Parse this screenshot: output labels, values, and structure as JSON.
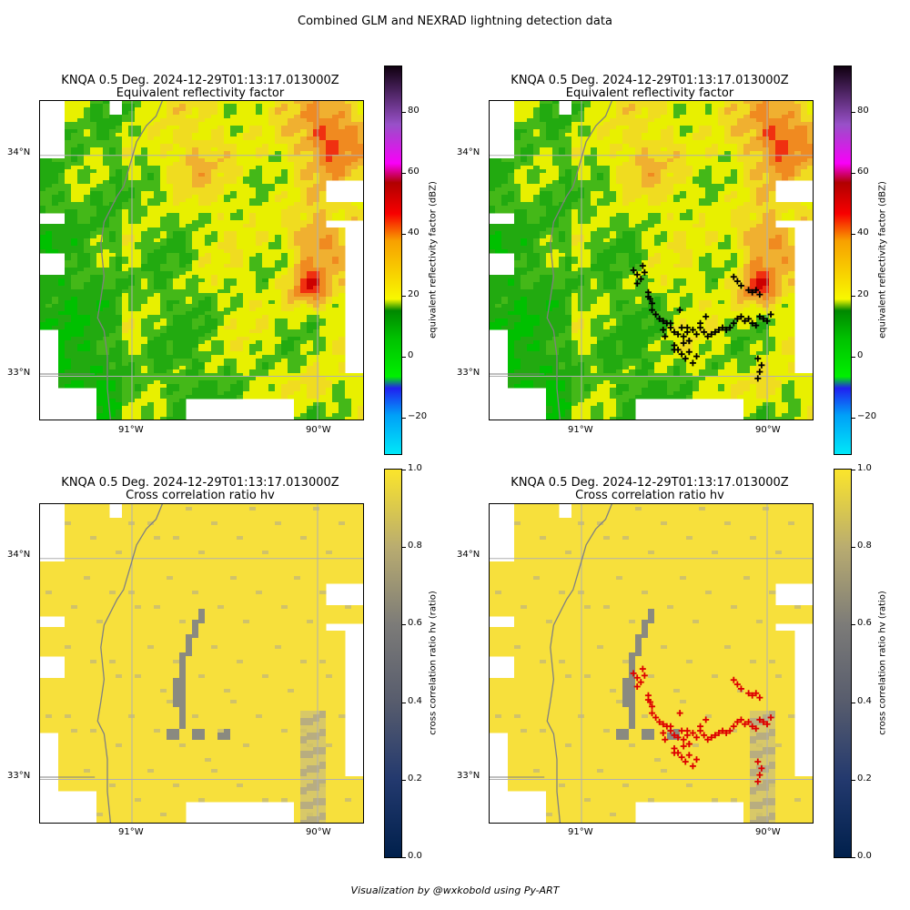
{
  "suptitle": "Combined GLM and NEXRAD lightning detection data",
  "footer": "Visualization by @wxkobold using Py-ART",
  "colors": {
    "grid": "#b0b0b0",
    "border": "#808080",
    "lightning_top": "#000000",
    "lightning_bottom": "#dd0000"
  },
  "panels": [
    {
      "id": "ref",
      "title_line1": "KNQA 0.5 Deg. 2024-12-29T01:13:17.013000Z",
      "title_line2": "Equivalent reflectivity factor",
      "field": "reflectivity",
      "overlay": false
    },
    {
      "id": "ref-lightning",
      "title_line1": "KNQA 0.5 Deg. 2024-12-29T01:13:17.013000Z",
      "title_line2": "Equivalent reflectivity factor",
      "field": "reflectivity",
      "overlay": true,
      "marker_color": "#000000"
    },
    {
      "id": "rhohv",
      "title_line1": "KNQA 0.5 Deg. 2024-12-29T01:13:17.013000Z",
      "title_line2": "Cross correlation ratio hv",
      "field": "rhohv",
      "overlay": false
    },
    {
      "id": "rhohv-lightning",
      "title_line1": "KNQA 0.5 Deg. 2024-12-29T01:13:17.013000Z",
      "title_line2": "Cross correlation ratio hv",
      "field": "rhohv",
      "overlay": true,
      "marker_color": "#dd0000"
    }
  ],
  "colorbars": {
    "reflectivity": {
      "label": "equivalent reflectivity factor (dBZ)",
      "ticks": [
        "80",
        "60",
        "40",
        "20",
        "0",
        "−20"
      ],
      "tick_values": [
        80,
        60,
        40,
        20,
        0,
        -20
      ],
      "range": [
        -32,
        95
      ]
    },
    "rhohv": {
      "label": "cross correlation ratio hv (ratio)",
      "ticks": [
        "1.0",
        "0.8",
        "0.6",
        "0.4",
        "0.2",
        "0.0"
      ],
      "tick_values": [
        1.0,
        0.8,
        0.6,
        0.4,
        0.2,
        0.0
      ],
      "range": [
        0,
        1
      ]
    }
  },
  "map_labels": {
    "lat_ticks": [
      "34°N",
      "33°N"
    ],
    "lon_ticks": [
      "91°W",
      "90°W"
    ]
  },
  "chart_data": {
    "type": "scatter",
    "xlabel": "",
    "ylabel": "",
    "lon_ticks": [
      -91,
      -90
    ],
    "lat_ticks": [
      34,
      33
    ],
    "lon_range": [
      -91.5,
      -89.75
    ],
    "lat_range": [
      32.8,
      34.25
    ],
    "grid": true,
    "series": [
      {
        "lon": [
          -90.72,
          -90.7,
          -90.68,
          -90.7,
          -90.67,
          -90.66,
          -90.64,
          -90.63,
          -90.62,
          -90.6,
          -90.58,
          -90.56,
          -90.54,
          -90.52,
          -90.5,
          -90.48,
          -90.46,
          -90.45,
          -90.43,
          -90.42,
          -90.4,
          -90.38,
          -90.36,
          -90.34,
          -90.32,
          -90.3,
          -90.28,
          -90.26,
          -90.24,
          -90.22,
          -90.2,
          -90.18,
          -90.16,
          -90.14,
          -90.12,
          -90.1,
          -90.08,
          -90.06,
          -90.04,
          -90.02,
          -90.0,
          -89.98,
          -90.18,
          -90.16,
          -90.14,
          -90.1,
          -90.08,
          -90.06,
          -90.04,
          -90.05,
          -90.03,
          -90.04,
          -90.05,
          -90.5,
          -90.48,
          -90.46,
          -90.42,
          -90.44,
          -90.4,
          -90.38,
          -90.42,
          -90.45,
          -90.5,
          -90.55,
          -90.56,
          -90.52,
          -90.47,
          -90.43,
          -90.36,
          -90.33,
          -90.62,
          -90.64
        ],
        "lat": [
          33.48,
          33.46,
          33.44,
          33.42,
          33.5,
          33.47,
          33.36,
          33.35,
          33.3,
          33.28,
          33.26,
          33.25,
          33.24,
          33.22,
          33.2,
          33.19,
          33.22,
          33.18,
          33.2,
          33.16,
          33.21,
          33.19,
          33.22,
          33.2,
          33.18,
          33.19,
          33.2,
          33.21,
          33.22,
          33.21,
          33.22,
          33.24,
          33.26,
          33.27,
          33.25,
          33.26,
          33.24,
          33.23,
          33.27,
          33.26,
          33.25,
          33.28,
          33.45,
          33.43,
          33.41,
          33.39,
          33.38,
          33.39,
          33.37,
          33.08,
          33.05,
          33.02,
          32.99,
          33.14,
          33.12,
          33.1,
          33.11,
          33.08,
          33.06,
          33.09,
          33.16,
          33.15,
          33.12,
          33.18,
          33.21,
          33.24,
          33.3,
          33.22,
          33.24,
          33.27,
          33.33,
          33.38
        ]
      }
    ]
  }
}
